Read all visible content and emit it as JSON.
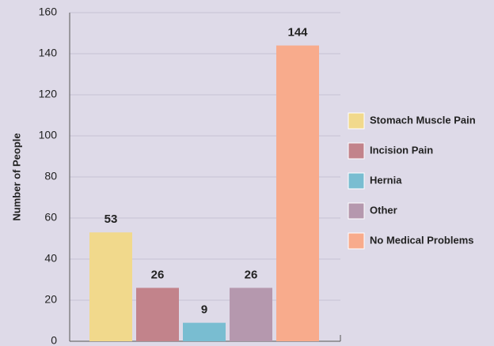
{
  "chart_data": {
    "type": "bar",
    "y_label": "Number of People",
    "categories": [
      "Stomach Muscle Pain",
      "Incision Pain",
      "Hernia",
      "Other",
      "No Medical Problems"
    ],
    "values": [
      53,
      26,
      9,
      26,
      144
    ],
    "colors": [
      "#f1d98c",
      "#c2838b",
      "#79bdd1",
      "#b598ae",
      "#f8ab8c"
    ],
    "ylim": [
      0,
      160
    ],
    "yticks": [
      0,
      20,
      40,
      60,
      80,
      100,
      120,
      140,
      160
    ],
    "grid": true,
    "legend": "right"
  }
}
